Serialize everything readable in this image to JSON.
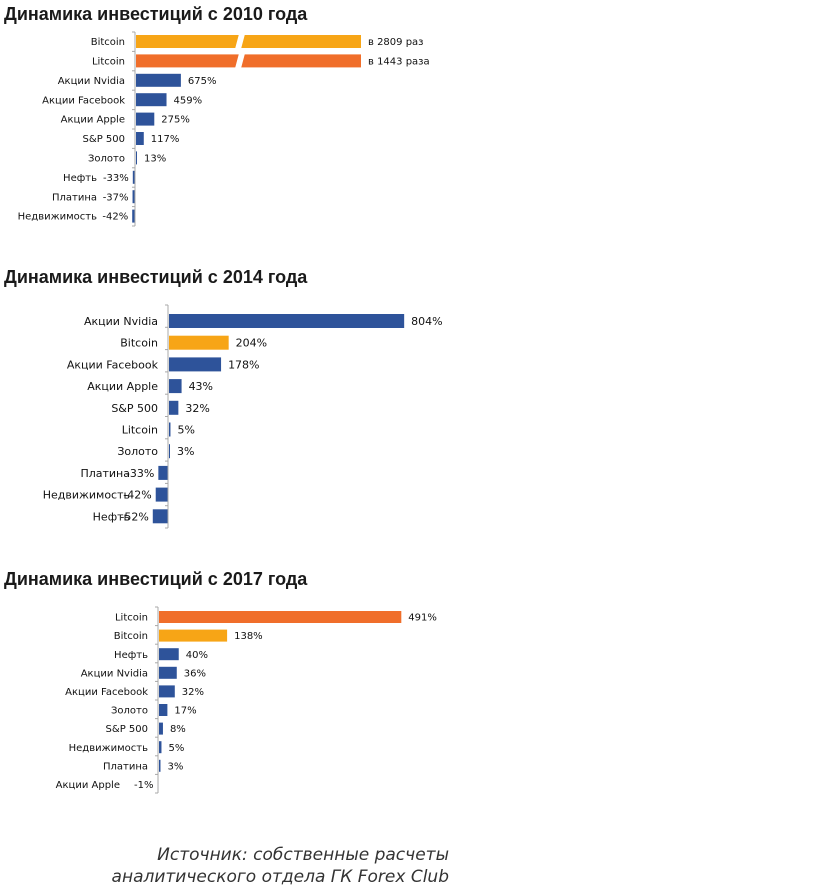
{
  "colors": {
    "orange": "#f7a516",
    "red_orange": "#f06e2a",
    "blue": "#2e539a",
    "axis": "#a8a8a8"
  },
  "chart_data": [
    {
      "type": "bar",
      "orientation": "horizontal",
      "title": "Динамика инвестиций с 2010 года",
      "categories": [
        "Bitcoin",
        "Litcoin",
        "Акции Nvidia",
        "Акции Facebook",
        "Акции Apple",
        "S&P 500",
        "Золото",
        "Нефть",
        "Платина",
        "Недвижимость"
      ],
      "values": [
        280900,
        144300,
        675,
        459,
        275,
        117,
        13,
        -33,
        -37,
        -42
      ],
      "value_labels": [
        "в 2809 раз",
        "в 1443 раза",
        "675%",
        "459%",
        "275%",
        "117%",
        "13%",
        "-33%",
        "-37%",
        "-42%"
      ],
      "bar_colors": [
        "orange",
        "red_orange",
        "blue",
        "blue",
        "blue",
        "blue",
        "blue",
        "blue",
        "blue",
        "blue"
      ],
      "broken_bars": [
        "Bitcoin",
        "Litcoin"
      ],
      "unit": "%"
    },
    {
      "type": "bar",
      "orientation": "horizontal",
      "title": "Динамика инвестиций с 2014 года",
      "categories": [
        "Акции Nvidia",
        "Bitcoin",
        "Акции Facebook",
        "Акции Apple",
        "S&P 500",
        "Litcoin",
        "Золото",
        "Платина",
        "Недвижимость",
        "Нефть"
      ],
      "values": [
        804,
        204,
        178,
        43,
        32,
        5,
        3,
        -33,
        -42,
        -52
      ],
      "value_labels": [
        "804%",
        "204%",
        "178%",
        "43%",
        "32%",
        "5%",
        "3%",
        "-33%",
        "-42%",
        "-52%"
      ],
      "bar_colors": [
        "blue",
        "orange",
        "blue",
        "blue",
        "blue",
        "blue",
        "blue",
        "blue",
        "blue",
        "blue"
      ],
      "unit": "%"
    },
    {
      "type": "bar",
      "orientation": "horizontal",
      "title": "Динамика инвестиций с 2017 года",
      "categories": [
        "Litcoin",
        "Bitcoin",
        "Нефть",
        "Акции Nvidia",
        "Акции Facebook",
        "Золото",
        "S&P 500",
        "Недвижимость",
        "Платина",
        "Акции Apple"
      ],
      "values": [
        491,
        138,
        40,
        36,
        32,
        17,
        8,
        5,
        3,
        -1
      ],
      "value_labels": [
        "491%",
        "138%",
        "40%",
        "36%",
        "32%",
        "17%",
        "8%",
        "5%",
        "3%",
        "-1%"
      ],
      "bar_colors": [
        "red_orange",
        "orange",
        "blue",
        "blue",
        "blue",
        "blue",
        "blue",
        "blue",
        "blue",
        "blue"
      ],
      "unit": "%"
    }
  ],
  "source": {
    "line1": "Источник: собственные расчеты",
    "line2": "аналитического отдела ГК Forex Club"
  }
}
